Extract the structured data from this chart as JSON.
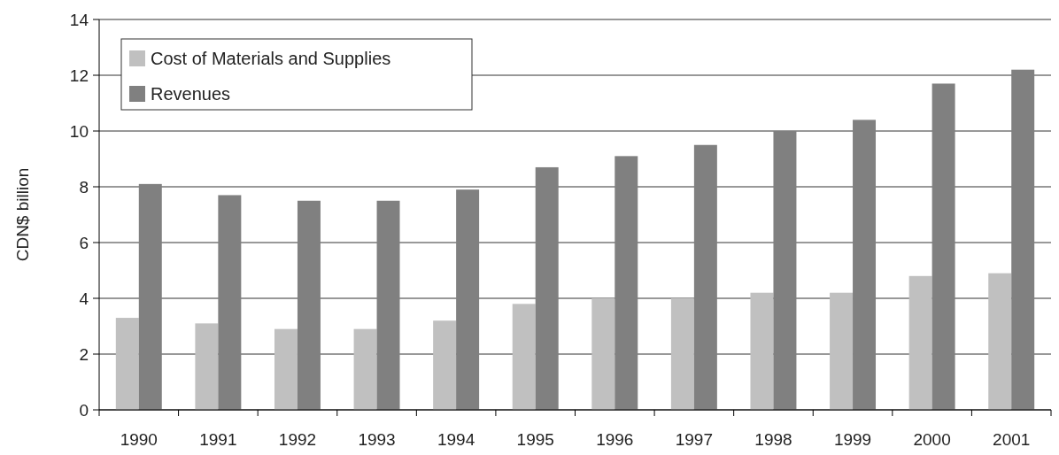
{
  "chart_data": {
    "type": "bar",
    "ylabel": "CDN$ billion",
    "categories": [
      "1990",
      "1991",
      "1992",
      "1993",
      "1994",
      "1995",
      "1996",
      "1997",
      "1998",
      "1999",
      "2000",
      "2001"
    ],
    "series": [
      {
        "name": "Cost of Materials and Supplies",
        "color": "#c0c0c0",
        "values": [
          3.3,
          3.1,
          2.9,
          2.9,
          3.2,
          3.8,
          4.0,
          4.0,
          4.2,
          4.2,
          4.8,
          4.9
        ]
      },
      {
        "name": "Revenues",
        "color": "#808080",
        "values": [
          8.1,
          7.7,
          7.5,
          7.5,
          7.9,
          8.7,
          9.1,
          9.5,
          10.0,
          10.4,
          11.7,
          12.2
        ]
      }
    ],
    "ylim": [
      0,
      14
    ],
    "yticks": [
      0,
      2,
      4,
      6,
      8,
      10,
      12,
      14
    ],
    "grid": "y",
    "legend": "top left"
  }
}
